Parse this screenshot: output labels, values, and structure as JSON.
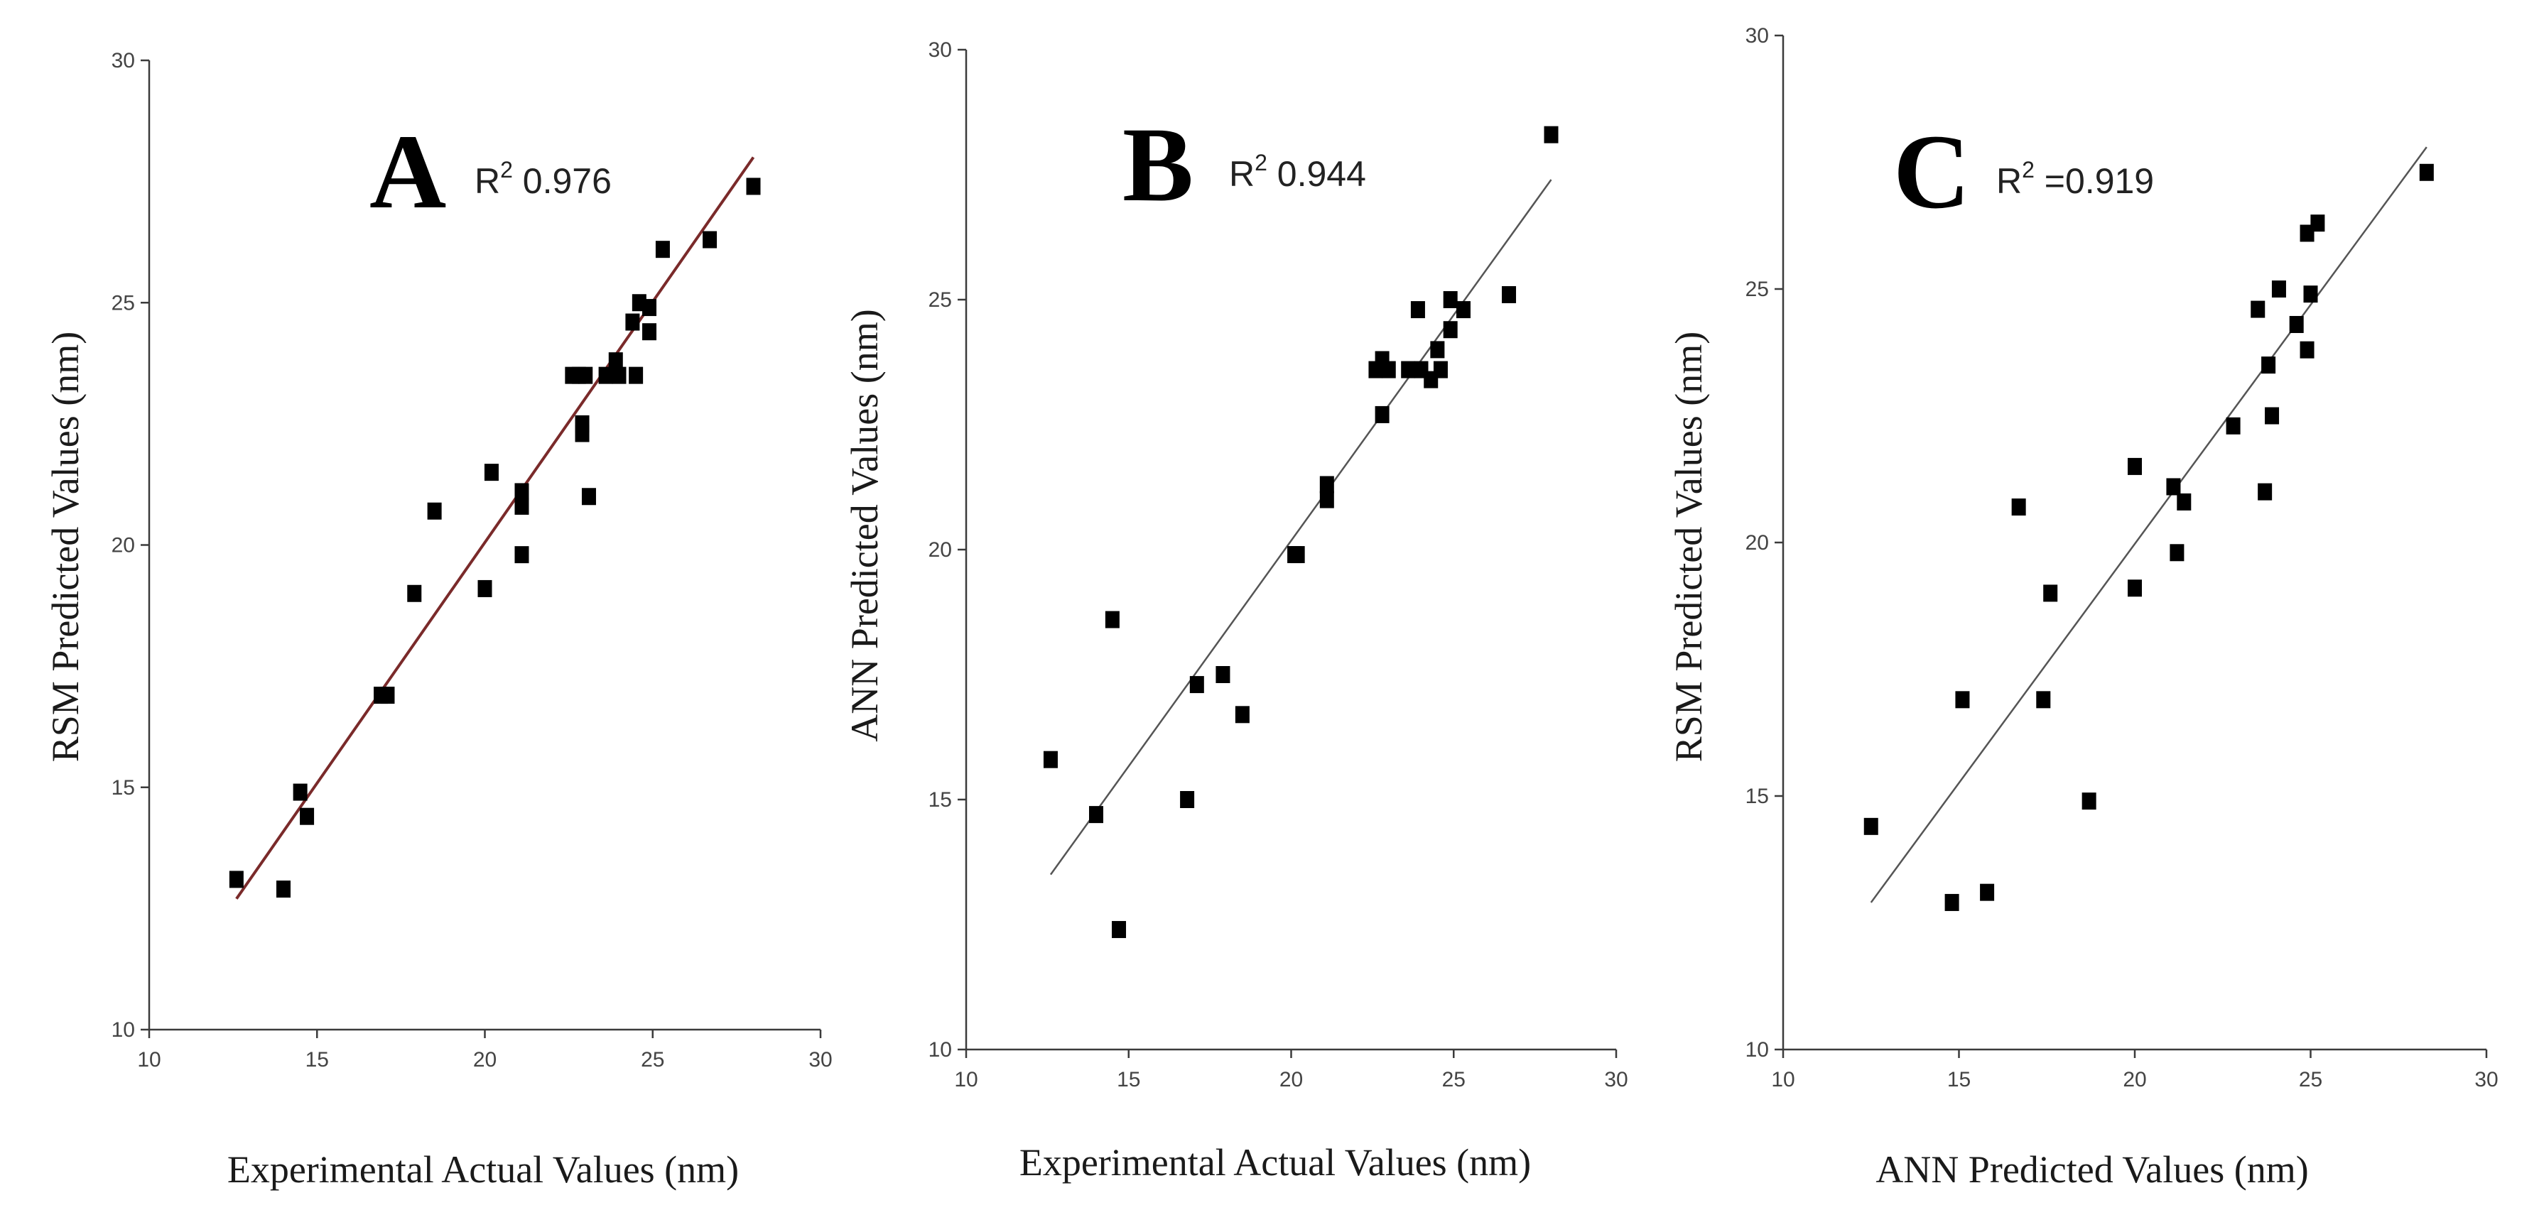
{
  "chart_data": [
    {
      "type": "scatter",
      "panel": "A",
      "r2_label": "R",
      "r2_exp": "2",
      "r2_value": " 0.976",
      "xlabel": "Experimental Actual Values (nm)",
      "ylabel": "RSM Predicted Values (nm)",
      "xlim": [
        10,
        30
      ],
      "ylim": [
        10,
        30
      ],
      "xticks": [
        "10",
        "15",
        "20",
        "25",
        "30"
      ],
      "yticks": [
        "10",
        "15",
        "20",
        "25",
        "30"
      ],
      "trendline": {
        "x": [
          12.6,
          28.0
        ],
        "y": [
          12.7,
          28.0
        ],
        "color": "#7a2a2a"
      },
      "points": [
        [
          12.6,
          13.1
        ],
        [
          14.0,
          12.9
        ],
        [
          14.5,
          14.9
        ],
        [
          14.7,
          14.4
        ],
        [
          16.9,
          16.9
        ],
        [
          17.1,
          16.9
        ],
        [
          17.9,
          19.0
        ],
        [
          18.5,
          20.7
        ],
        [
          20.0,
          19.1
        ],
        [
          20.2,
          21.5
        ],
        [
          21.1,
          21.1
        ],
        [
          21.1,
          20.8
        ],
        [
          21.1,
          19.8
        ],
        [
          22.6,
          23.5
        ],
        [
          22.8,
          23.5
        ],
        [
          23.0,
          23.5
        ],
        [
          22.9,
          22.5
        ],
        [
          22.9,
          22.3
        ],
        [
          23.1,
          21.0
        ],
        [
          23.6,
          23.5
        ],
        [
          23.9,
          23.8
        ],
        [
          24.0,
          23.5
        ],
        [
          24.4,
          24.6
        ],
        [
          24.5,
          23.5
        ],
        [
          24.6,
          25.0
        ],
        [
          24.9,
          24.9
        ],
        [
          24.9,
          24.4
        ],
        [
          25.3,
          26.1
        ],
        [
          26.7,
          26.3
        ],
        [
          28.0,
          27.4
        ]
      ]
    },
    {
      "type": "scatter",
      "panel": "B",
      "r2_label": "R",
      "r2_exp": "2",
      "r2_value": " 0.944",
      "xlabel": "Experimental Actual Values (nm)",
      "ylabel": "ANN Predicted Values (nm)",
      "xlim": [
        10,
        30
      ],
      "ylim": [
        10,
        30
      ],
      "xticks": [
        "10",
        "15",
        "20",
        "25",
        "30"
      ],
      "yticks": [
        "10",
        "15",
        "20",
        "25",
        "30"
      ],
      "trendline": {
        "x": [
          12.6,
          28.0
        ],
        "y": [
          13.5,
          27.4
        ],
        "color": "#555555"
      },
      "points": [
        [
          12.6,
          15.8
        ],
        [
          14.0,
          14.7
        ],
        [
          14.5,
          18.6
        ],
        [
          14.7,
          12.4
        ],
        [
          16.8,
          15.0
        ],
        [
          17.1,
          17.3
        ],
        [
          17.9,
          17.5
        ],
        [
          18.5,
          16.7
        ],
        [
          20.1,
          19.9
        ],
        [
          20.2,
          19.9
        ],
        [
          21.1,
          21.0
        ],
        [
          21.1,
          21.3
        ],
        [
          22.6,
          23.6
        ],
        [
          22.8,
          23.8
        ],
        [
          22.8,
          22.7
        ],
        [
          23.0,
          23.6
        ],
        [
          23.6,
          23.6
        ],
        [
          23.9,
          24.8
        ],
        [
          24.0,
          23.6
        ],
        [
          24.3,
          23.4
        ],
        [
          24.5,
          24.0
        ],
        [
          24.6,
          23.6
        ],
        [
          24.9,
          25.0
        ],
        [
          24.9,
          24.4
        ],
        [
          25.3,
          24.8
        ],
        [
          26.7,
          25.1
        ],
        [
          28.0,
          28.3
        ]
      ]
    },
    {
      "type": "scatter",
      "panel": "C",
      "r2_label": "R",
      "r2_exp": "2",
      "r2_value": " =0.919",
      "xlabel": "ANN Predicted Values (nm)",
      "ylabel": "RSM Predicted Values (nm)",
      "xlim": [
        10,
        30
      ],
      "ylim": [
        10,
        30
      ],
      "xticks": [
        "10",
        "15",
        "20",
        "25",
        "30"
      ],
      "yticks": [
        "10",
        "15",
        "20",
        "25",
        "30"
      ],
      "trendline": {
        "x": [
          12.5,
          28.3
        ],
        "y": [
          12.9,
          27.8
        ],
        "color": "#555555"
      },
      "points": [
        [
          12.5,
          14.4
        ],
        [
          14.8,
          12.9
        ],
        [
          15.1,
          16.9
        ],
        [
          15.8,
          13.1
        ],
        [
          16.7,
          20.7
        ],
        [
          17.4,
          16.9
        ],
        [
          17.6,
          19.0
        ],
        [
          18.7,
          14.9
        ],
        [
          20.0,
          21.5
        ],
        [
          20.0,
          19.1
        ],
        [
          21.1,
          21.1
        ],
        [
          21.2,
          19.8
        ],
        [
          21.4,
          20.8
        ],
        [
          22.8,
          22.3
        ],
        [
          23.5,
          24.6
        ],
        [
          23.7,
          21.0
        ],
        [
          23.8,
          23.5
        ],
        [
          23.9,
          22.5
        ],
        [
          24.1,
          25.0
        ],
        [
          24.6,
          24.3
        ],
        [
          24.9,
          26.1
        ],
        [
          24.9,
          23.8
        ],
        [
          25.0,
          24.9
        ],
        [
          25.2,
          26.3
        ],
        [
          28.3,
          27.3
        ]
      ]
    }
  ]
}
